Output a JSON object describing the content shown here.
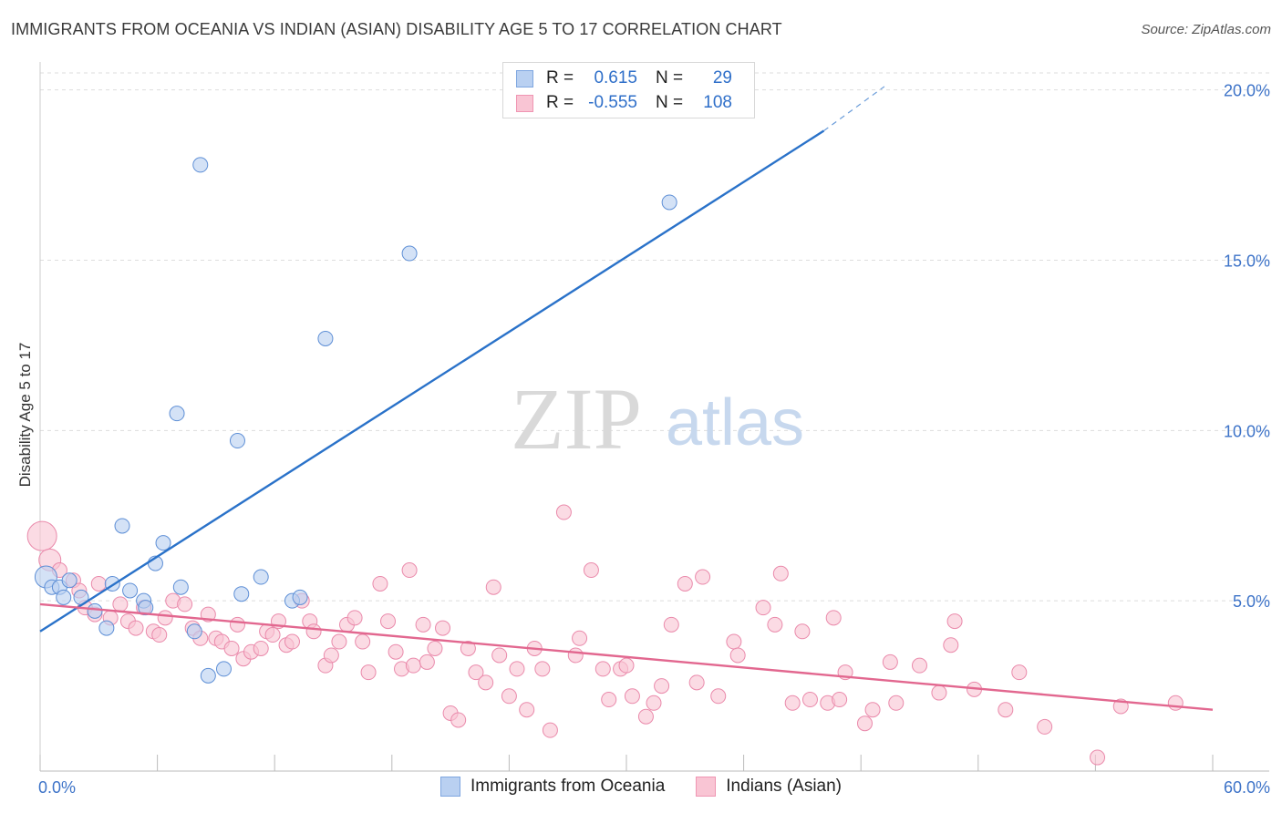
{
  "title": "IMMIGRANTS FROM OCEANIA VS INDIAN (ASIAN) DISABILITY AGE 5 TO 17 CORRELATION CHART",
  "source": "Source: ZipAtlas.com",
  "watermark": {
    "zip": "ZIP",
    "atlas": "atlas"
  },
  "legend": {
    "rows": [
      {
        "r_label": "R =",
        "r_value": "0.615",
        "n_label": "N =",
        "n_value": "29",
        "fill": "#b9d0f1",
        "stroke": "#7ea6e0"
      },
      {
        "r_label": "R =",
        "r_value": "-0.555",
        "n_label": "N =",
        "n_value": "108",
        "fill": "#f9c5d4",
        "stroke": "#ef95b2"
      }
    ]
  },
  "colors": {
    "blue_fill": "#b9d0f1",
    "blue_stroke": "#5e8fd6",
    "blue_line": "#2a72c9",
    "pink_fill": "#f9c5d4",
    "pink_stroke": "#ea8aab",
    "pink_line": "#e2678f",
    "axis_text": "#3d73c8",
    "grid": "#dddddd"
  },
  "chart_data": {
    "type": "scatter",
    "title": "IMMIGRANTS FROM OCEANIA VS INDIAN (ASIAN) DISABILITY AGE 5 TO 17 CORRELATION CHART",
    "xlabel": "",
    "ylabel": "Disability Age 5 to 17",
    "xlim": [
      0,
      60
    ],
    "ylim": [
      0,
      20.5
    ],
    "x_tick_labels": [
      "0.0%",
      "60.0%"
    ],
    "y_ticks": [
      5,
      10,
      15,
      20
    ],
    "y_tick_labels": [
      "5.0%",
      "10.0%",
      "15.0%",
      "20.0%"
    ],
    "grid": true,
    "legend_position": "top-center",
    "series": [
      {
        "name": "Immigrants from Oceania",
        "marker": "circle",
        "points": [
          [
            0.3,
            5.7
          ],
          [
            0.6,
            5.4
          ],
          [
            1.0,
            5.4
          ],
          [
            1.2,
            5.1
          ],
          [
            1.5,
            5.6
          ],
          [
            2.1,
            5.1
          ],
          [
            2.8,
            4.7
          ],
          [
            3.4,
            4.2
          ],
          [
            3.7,
            5.5
          ],
          [
            4.2,
            7.2
          ],
          [
            4.6,
            5.3
          ],
          [
            5.3,
            5.0
          ],
          [
            5.4,
            4.8
          ],
          [
            5.9,
            6.1
          ],
          [
            6.3,
            6.7
          ],
          [
            7.0,
            10.5
          ],
          [
            7.2,
            5.4
          ],
          [
            7.9,
            4.1
          ],
          [
            8.2,
            17.8
          ],
          [
            8.6,
            2.8
          ],
          [
            9.4,
            3.0
          ],
          [
            10.1,
            9.7
          ],
          [
            10.3,
            5.2
          ],
          [
            11.3,
            5.7
          ],
          [
            12.9,
            5.0
          ],
          [
            13.3,
            5.1
          ],
          [
            14.6,
            12.7
          ],
          [
            18.9,
            15.2
          ],
          [
            32.2,
            16.7
          ]
        ],
        "sizes": [
          2,
          1,
          1,
          1,
          1,
          1,
          1,
          1,
          1,
          1,
          1,
          1,
          1,
          1,
          1,
          1,
          1,
          1,
          1,
          1,
          1,
          1,
          1,
          1,
          1,
          1,
          1,
          1,
          1
        ]
      },
      {
        "name": "Indians (Asian)",
        "marker": "circle",
        "points": [
          [
            0.1,
            6.9
          ],
          [
            0.5,
            6.2
          ],
          [
            1.0,
            5.9
          ],
          [
            1.7,
            5.6
          ],
          [
            2.0,
            5.3
          ],
          [
            2.3,
            4.8
          ],
          [
            2.8,
            4.6
          ],
          [
            3.0,
            5.5
          ],
          [
            3.6,
            4.5
          ],
          [
            4.1,
            4.9
          ],
          [
            4.5,
            4.4
          ],
          [
            4.9,
            4.2
          ],
          [
            5.3,
            4.8
          ],
          [
            5.8,
            4.1
          ],
          [
            6.1,
            4.0
          ],
          [
            6.4,
            4.5
          ],
          [
            6.8,
            5.0
          ],
          [
            7.4,
            4.9
          ],
          [
            7.8,
            4.2
          ],
          [
            8.2,
            3.9
          ],
          [
            8.6,
            4.6
          ],
          [
            9.0,
            3.9
          ],
          [
            9.3,
            3.8
          ],
          [
            9.8,
            3.6
          ],
          [
            10.1,
            4.3
          ],
          [
            10.4,
            3.3
          ],
          [
            10.8,
            3.5
          ],
          [
            11.3,
            3.6
          ],
          [
            11.6,
            4.1
          ],
          [
            11.9,
            4.0
          ],
          [
            12.2,
            4.4
          ],
          [
            12.6,
            3.7
          ],
          [
            12.9,
            3.8
          ],
          [
            13.4,
            5.0
          ],
          [
            13.8,
            4.4
          ],
          [
            14.0,
            4.1
          ],
          [
            14.6,
            3.1
          ],
          [
            14.9,
            3.4
          ],
          [
            15.3,
            3.8
          ],
          [
            15.7,
            4.3
          ],
          [
            16.1,
            4.5
          ],
          [
            16.5,
            3.8
          ],
          [
            16.8,
            2.9
          ],
          [
            17.4,
            5.5
          ],
          [
            17.8,
            4.4
          ],
          [
            18.2,
            3.5
          ],
          [
            18.5,
            3.0
          ],
          [
            18.9,
            5.9
          ],
          [
            19.1,
            3.1
          ],
          [
            19.6,
            4.3
          ],
          [
            19.8,
            3.2
          ],
          [
            20.2,
            3.6
          ],
          [
            20.6,
            4.2
          ],
          [
            21.0,
            1.7
          ],
          [
            21.4,
            1.5
          ],
          [
            21.9,
            3.6
          ],
          [
            22.3,
            2.9
          ],
          [
            22.8,
            2.6
          ],
          [
            23.2,
            5.4
          ],
          [
            23.5,
            3.4
          ],
          [
            24.0,
            2.2
          ],
          [
            24.4,
            3.0
          ],
          [
            24.9,
            1.8
          ],
          [
            25.3,
            3.6
          ],
          [
            25.7,
            3.0
          ],
          [
            26.1,
            1.2
          ],
          [
            26.8,
            7.6
          ],
          [
            27.4,
            3.4
          ],
          [
            27.6,
            3.9
          ],
          [
            28.2,
            5.9
          ],
          [
            28.8,
            3.0
          ],
          [
            29.1,
            2.1
          ],
          [
            29.7,
            3.0
          ],
          [
            30.0,
            3.1
          ],
          [
            30.3,
            2.2
          ],
          [
            31.0,
            1.6
          ],
          [
            31.4,
            2.0
          ],
          [
            31.8,
            2.5
          ],
          [
            32.3,
            4.3
          ],
          [
            33.0,
            5.5
          ],
          [
            33.6,
            2.6
          ],
          [
            33.9,
            5.7
          ],
          [
            34.7,
            2.2
          ],
          [
            35.5,
            3.8
          ],
          [
            35.7,
            3.4
          ],
          [
            37.0,
            4.8
          ],
          [
            37.6,
            4.3
          ],
          [
            37.9,
            5.8
          ],
          [
            38.5,
            2.0
          ],
          [
            39.0,
            4.1
          ],
          [
            39.4,
            2.1
          ],
          [
            40.3,
            2.0
          ],
          [
            40.6,
            4.5
          ],
          [
            40.9,
            2.1
          ],
          [
            41.2,
            2.9
          ],
          [
            42.2,
            1.4
          ],
          [
            42.6,
            1.8
          ],
          [
            43.5,
            3.2
          ],
          [
            43.8,
            2.0
          ],
          [
            45.0,
            3.1
          ],
          [
            46.0,
            2.3
          ],
          [
            46.6,
            3.7
          ],
          [
            46.8,
            4.4
          ],
          [
            47.8,
            2.4
          ],
          [
            49.4,
            1.8
          ],
          [
            50.1,
            2.9
          ],
          [
            51.4,
            1.3
          ],
          [
            54.1,
            0.4
          ],
          [
            55.3,
            1.9
          ],
          [
            58.1,
            2.0
          ]
        ],
        "sizes": [
          3,
          2,
          1,
          1,
          1,
          1,
          1,
          1,
          1,
          1,
          1,
          1,
          1,
          1,
          1,
          1,
          1,
          1,
          1,
          1,
          1,
          1,
          1,
          1,
          1,
          1,
          1,
          1,
          1,
          1,
          1,
          1,
          1,
          1,
          1,
          1,
          1,
          1,
          1,
          1,
          1,
          1,
          1,
          1,
          1,
          1,
          1,
          1,
          1,
          1,
          1,
          1,
          1,
          1,
          1,
          1,
          1,
          1,
          1,
          1,
          1,
          1,
          1,
          1,
          1,
          1,
          1,
          1,
          1,
          1,
          1,
          1,
          1,
          1,
          1,
          1,
          1,
          1,
          1,
          1,
          1,
          1,
          1,
          1,
          1,
          1,
          1,
          1,
          1,
          1,
          1,
          1,
          1,
          1,
          1,
          1,
          1,
          1,
          1,
          1,
          1,
          1,
          1,
          1,
          1,
          1,
          1,
          1
        ]
      }
    ],
    "trend_lines": [
      {
        "series": "Immigrants from Oceania",
        "from": [
          0,
          4.1
        ],
        "to": [
          40.1,
          18.8
        ],
        "dashed_to": [
          43.2,
          20.1
        ]
      },
      {
        "series": "Indians (Asian)",
        "from": [
          0,
          4.9
        ],
        "to": [
          60,
          1.8
        ]
      }
    ]
  }
}
